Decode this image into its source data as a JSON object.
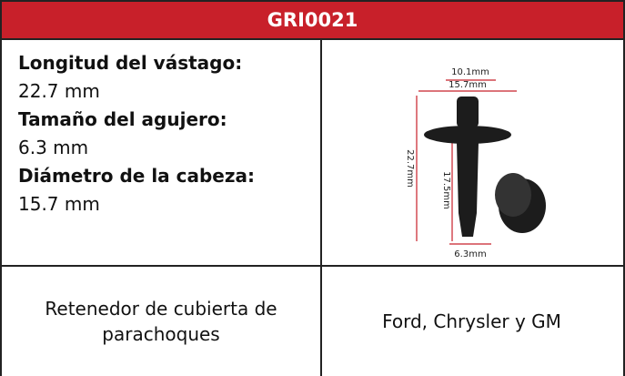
{
  "header": {
    "title": "GRI0021"
  },
  "specs": [
    {
      "label": "Longitud del vástago:",
      "value": "22.7 mm"
    },
    {
      "label": "Tamaño del agujero:",
      "value": "6.3 mm"
    },
    {
      "label": "Diámetro de la cabeza:",
      "value": "15.7 mm"
    }
  ],
  "image": {
    "dimensions": [
      "10.1mm",
      "15.7mm",
      "22.7mm",
      "17.5mm",
      "6.3mm"
    ]
  },
  "footer": {
    "description": "Retenedor de cubierta de parachoques",
    "makes": "Ford, Chrysler y GM"
  }
}
